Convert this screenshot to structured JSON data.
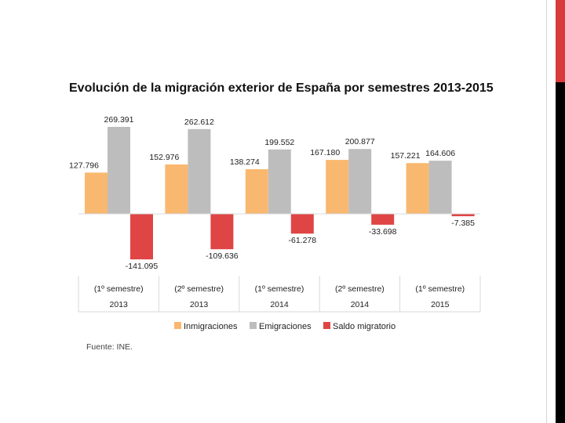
{
  "chart_data": {
    "type": "bar",
    "title": "Evolución de la migración exterior de España por semestres 2013-2015",
    "categories": [
      {
        "line1": "(1º semestre)",
        "line2": "2013"
      },
      {
        "line1": "(2º semestre)",
        "line2": "2013"
      },
      {
        "line1": "(1º semestre)",
        "line2": "2014"
      },
      {
        "line1": "(2º semestre)",
        "line2": "2014"
      },
      {
        "line1": "(1º semestre)",
        "line2": "2015"
      }
    ],
    "series": [
      {
        "name": "Inmigraciones",
        "color": "#f9b86f",
        "values": [
          127796,
          152976,
          138274,
          167180,
          157221
        ],
        "labels": [
          "127.796",
          "152.976",
          "138.274",
          "167.180",
          "157.221"
        ]
      },
      {
        "name": "Emigraciones",
        "color": "#bdbdbd",
        "values": [
          269391,
          262612,
          199552,
          200877,
          164606
        ],
        "labels": [
          "269.391",
          "262.612",
          "199.552",
          "200.877",
          "164.606"
        ]
      },
      {
        "name": "Saldo migratorio",
        "color": "#df4545",
        "values": [
          -141095,
          -109636,
          -61278,
          -33698,
          -7385
        ],
        "labels": [
          "-141.095",
          "-109.636",
          "-61.278",
          "-33.698",
          "-7.385"
        ]
      }
    ],
    "ylim": [
      -160000,
      290000
    ],
    "grid": false,
    "legend_position": "bottom"
  },
  "source": "Fuente: INE."
}
